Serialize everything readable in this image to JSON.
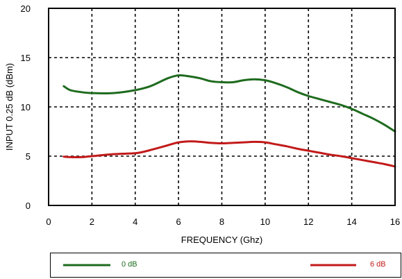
{
  "chart_data": {
    "type": "line",
    "xlabel": "FREQUENCY (Ghz)",
    "ylabel": "INPUT 0.25 dB (dBm)",
    "xlim": [
      0,
      16
    ],
    "ylim": [
      0,
      20
    ],
    "xticks": [
      0,
      2,
      4,
      6,
      8,
      10,
      12,
      14,
      16
    ],
    "yticks": [
      0,
      5,
      10,
      15,
      20
    ],
    "grid": true,
    "legend_position": "bottom",
    "series": [
      {
        "name": "0 dB",
        "color": "#1e6b1e",
        "points": [
          [
            0.7,
            12.1
          ],
          [
            1.0,
            11.7
          ],
          [
            1.5,
            11.5
          ],
          [
            2.0,
            11.4
          ],
          [
            3.0,
            11.4
          ],
          [
            4.0,
            11.7
          ],
          [
            4.7,
            12.1
          ],
          [
            5.5,
            12.9
          ],
          [
            6.0,
            13.2
          ],
          [
            6.5,
            13.1
          ],
          [
            7.0,
            12.9
          ],
          [
            7.5,
            12.6
          ],
          [
            8.0,
            12.5
          ],
          [
            8.5,
            12.5
          ],
          [
            9.0,
            12.7
          ],
          [
            9.5,
            12.8
          ],
          [
            10.0,
            12.7
          ],
          [
            10.5,
            12.4
          ],
          [
            11.0,
            12.0
          ],
          [
            11.5,
            11.5
          ],
          [
            12.0,
            11.1
          ],
          [
            12.5,
            10.8
          ],
          [
            13.0,
            10.5
          ],
          [
            13.5,
            10.2
          ],
          [
            14.0,
            9.8
          ],
          [
            14.5,
            9.3
          ],
          [
            15.0,
            8.8
          ],
          [
            15.5,
            8.2
          ],
          [
            16.0,
            7.5
          ]
        ]
      },
      {
        "name": "6 dB",
        "color": "#c21a1a",
        "points": [
          [
            0.7,
            4.95
          ],
          [
            1.0,
            4.9
          ],
          [
            1.5,
            4.9
          ],
          [
            2.0,
            5.0
          ],
          [
            3.0,
            5.2
          ],
          [
            4.0,
            5.3
          ],
          [
            4.5,
            5.5
          ],
          [
            5.0,
            5.8
          ],
          [
            5.5,
            6.1
          ],
          [
            6.0,
            6.4
          ],
          [
            6.5,
            6.5
          ],
          [
            7.0,
            6.45
          ],
          [
            7.5,
            6.35
          ],
          [
            8.0,
            6.3
          ],
          [
            8.5,
            6.35
          ],
          [
            9.0,
            6.4
          ],
          [
            9.5,
            6.45
          ],
          [
            10.0,
            6.4
          ],
          [
            10.5,
            6.2
          ],
          [
            11.0,
            6.0
          ],
          [
            11.5,
            5.75
          ],
          [
            12.0,
            5.55
          ],
          [
            12.5,
            5.35
          ],
          [
            13.0,
            5.15
          ],
          [
            13.5,
            5.0
          ],
          [
            14.0,
            4.8
          ],
          [
            14.5,
            4.6
          ],
          [
            15.0,
            4.4
          ],
          [
            15.5,
            4.2
          ],
          [
            16.0,
            3.95
          ]
        ]
      }
    ]
  }
}
